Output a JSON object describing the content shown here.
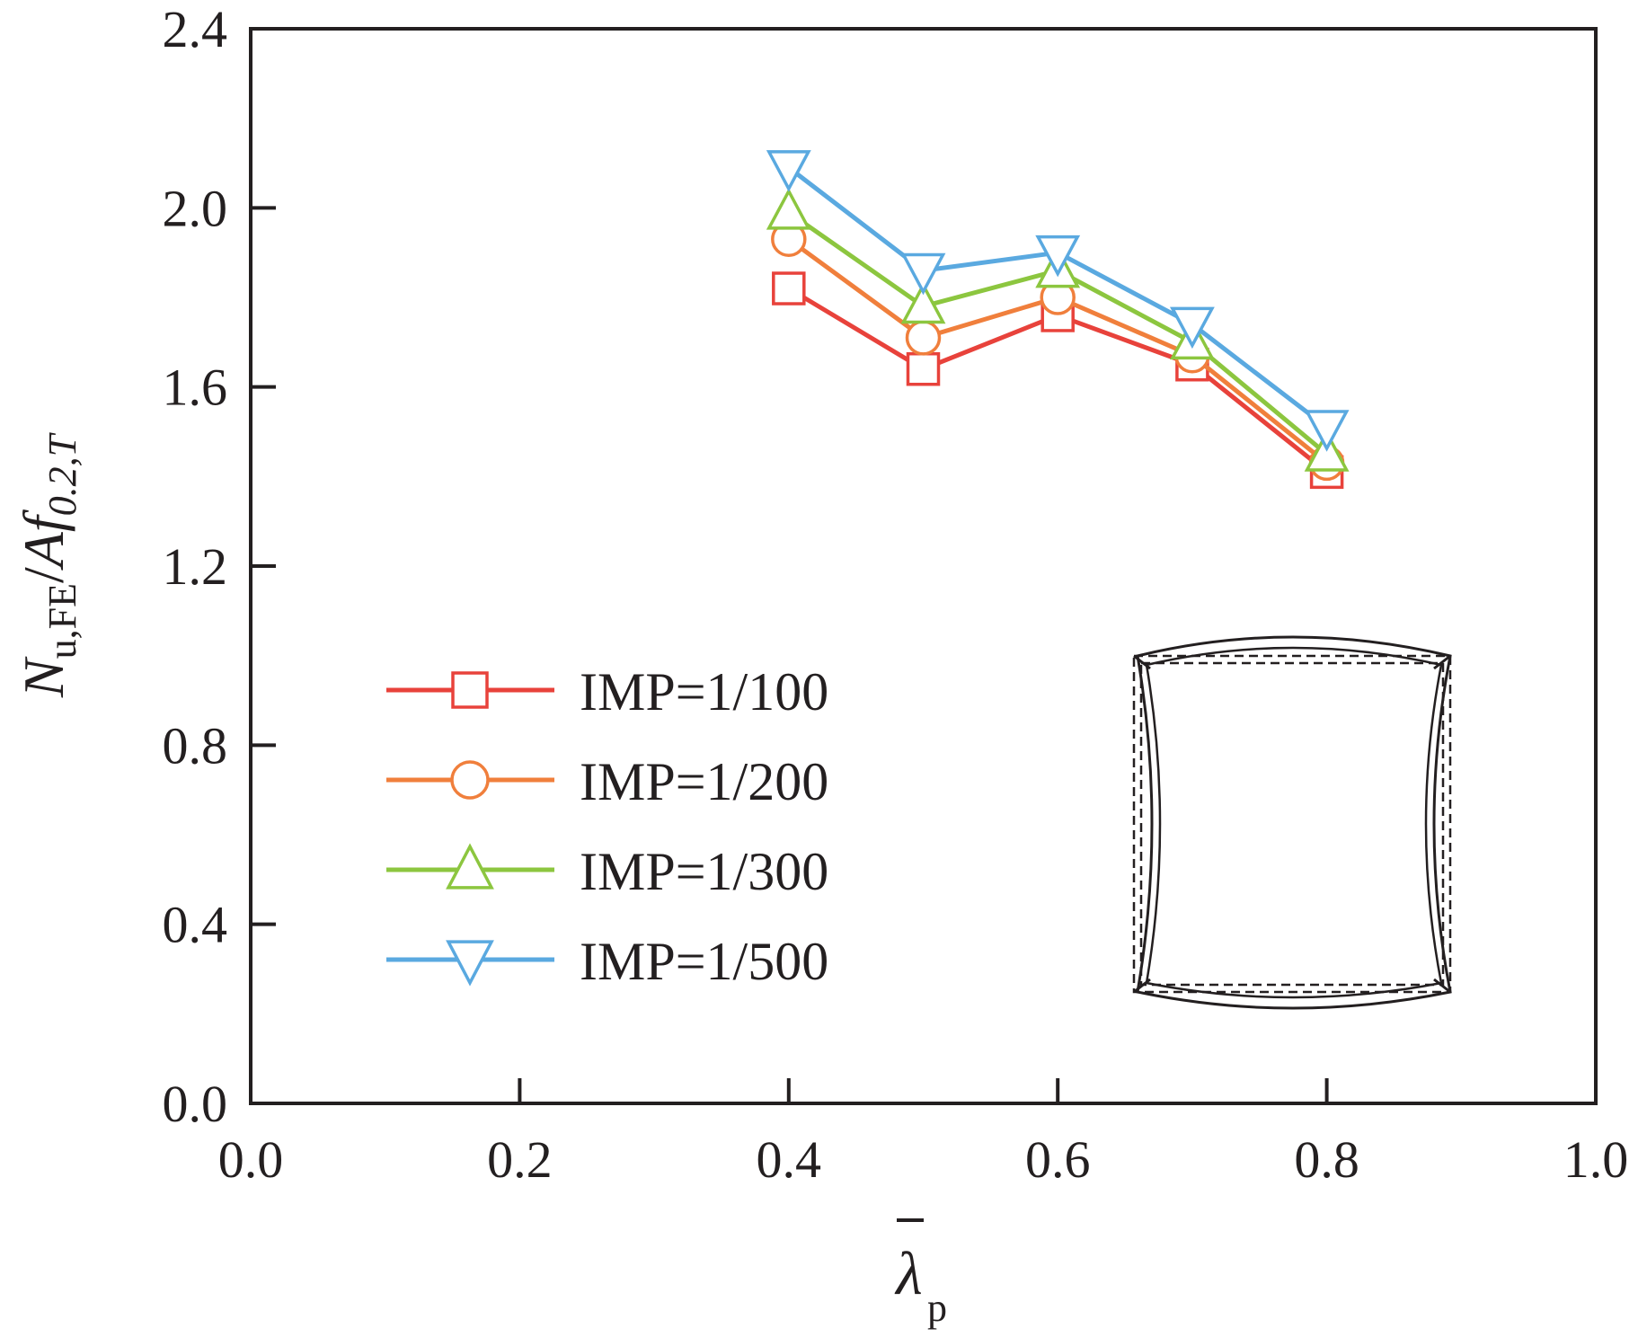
{
  "chart_data": {
    "type": "line",
    "x": [
      0.4,
      0.5,
      0.6,
      0.7,
      0.8
    ],
    "series": [
      {
        "name": "IMP=1/100",
        "values": [
          1.82,
          1.64,
          1.76,
          1.65,
          1.41
        ],
        "color": "#e8423b",
        "marker": "square"
      },
      {
        "name": "IMP=1/200",
        "values": [
          1.93,
          1.71,
          1.8,
          1.67,
          1.43
        ],
        "color": "#f07f3c",
        "marker": "circle"
      },
      {
        "name": "IMP=1/300",
        "values": [
          1.99,
          1.78,
          1.86,
          1.7,
          1.45
        ],
        "color": "#8cc63f",
        "marker": "triangle-up"
      },
      {
        "name": "IMP=1/500",
        "values": [
          2.09,
          1.86,
          1.9,
          1.74,
          1.51
        ],
        "color": "#5aa9e0",
        "marker": "triangle-down"
      }
    ],
    "xlim": [
      0.0,
      1.0
    ],
    "ylim": [
      0.0,
      2.4
    ],
    "xticks": [
      "0.0",
      "0.2",
      "0.4",
      "0.6",
      "0.8",
      "1.0"
    ],
    "yticks": [
      "0.0",
      "0.4",
      "0.8",
      "1.2",
      "1.6",
      "2.0",
      "2.4"
    ],
    "xlabel": {
      "main": "λ",
      "sub": "p"
    },
    "ylabel": {
      "n": "N",
      "n_sub": "u,FE",
      "slash": "/",
      "a": "Af",
      "f_sub": "0.2,T"
    },
    "legend_placement": "lower-left",
    "grid": false,
    "inset": "cross-section-buckling-icon"
  }
}
